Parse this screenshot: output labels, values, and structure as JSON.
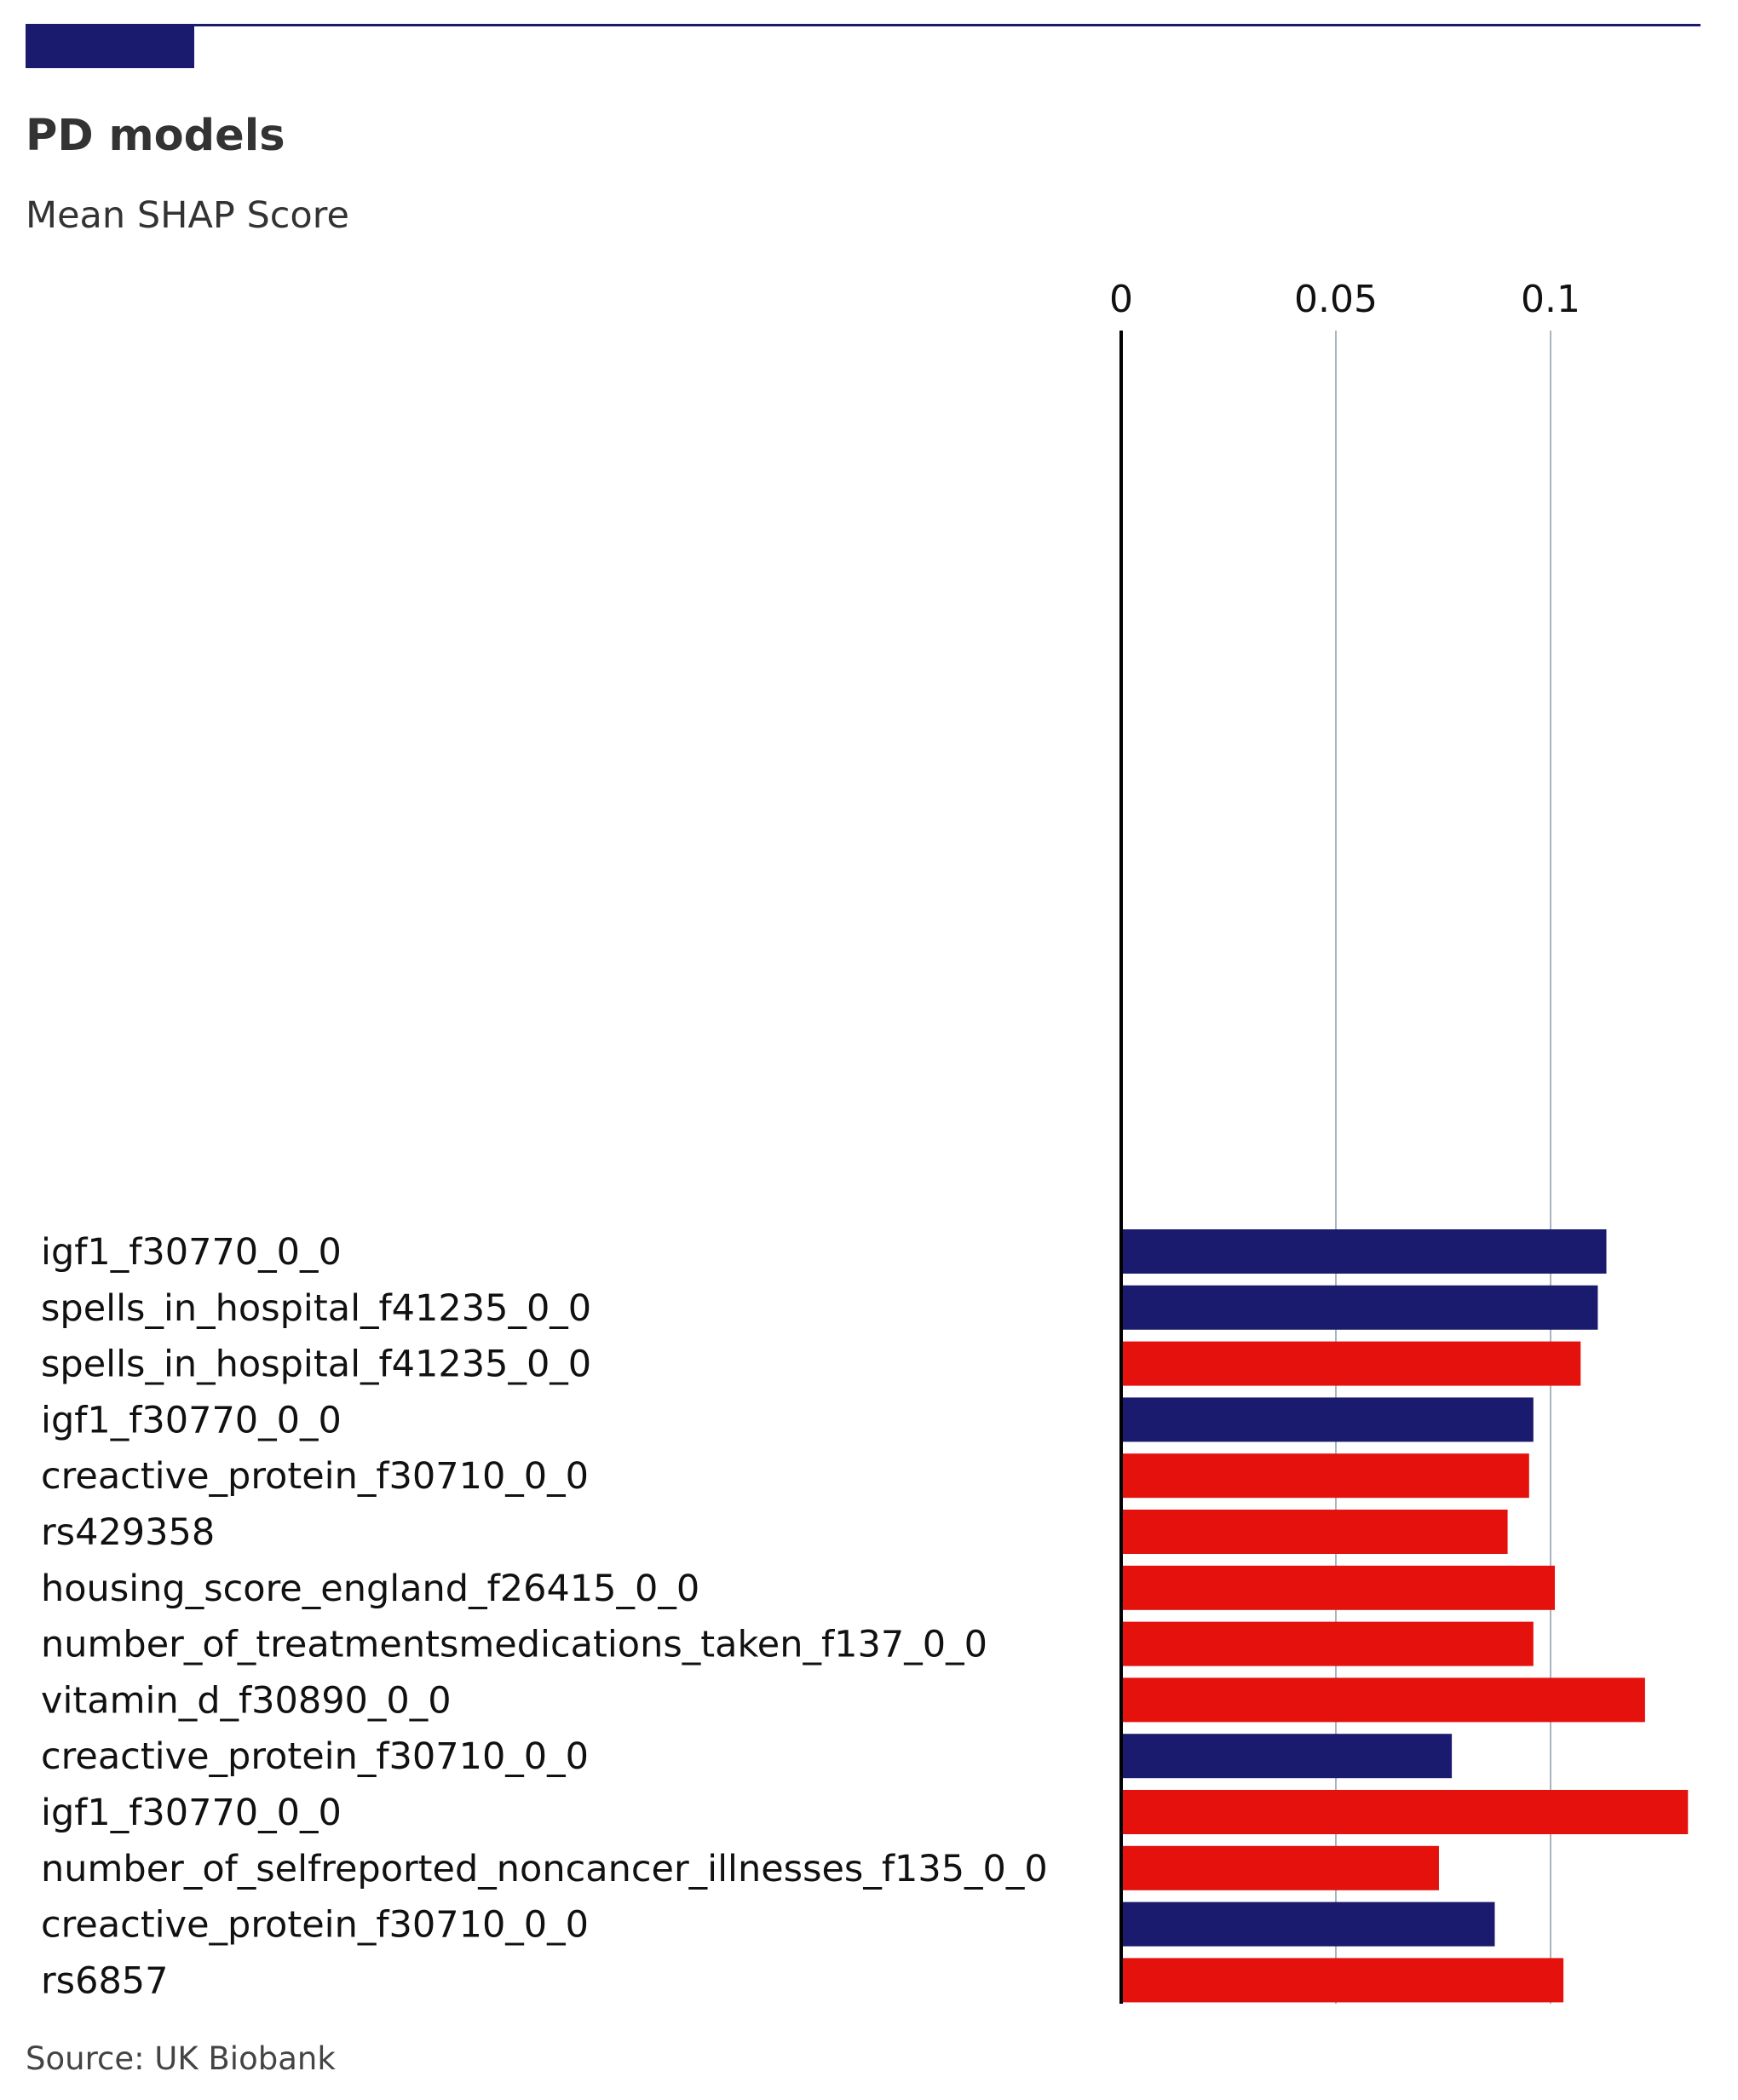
{
  "colors": {
    "navy": "#1a1a6e",
    "red": "#e4110d",
    "grid": "#aab4bf",
    "axis": "#000000"
  },
  "chart_data": {
    "type": "bar",
    "orientation": "horizontal",
    "title": "PD models",
    "subtitle": "Mean SHAP Score",
    "source": "Source: UK Biobank",
    "xlim": [
      0,
      0.13
    ],
    "xticks": [
      0,
      0.05,
      0.1
    ],
    "xtick_labels": [
      "0",
      "0.05",
      "0.1"
    ],
    "grid": true,
    "categories": [
      "igf1_f30770_0_0",
      "spells_in_hospital_f41235_0_0",
      "spells_in_hospital_f41235_0_0",
      "igf1_f30770_0_0",
      "creactive_protein_f30710_0_0",
      "rs429358",
      "housing_score_england_f26415_0_0",
      "number_of_treatmentsmedications_taken_f137_0_0",
      "vitamin_d_f30890_0_0",
      "creactive_protein_f30710_0_0",
      "igf1_f30770_0_0",
      "number_of_selfreported_noncancer_illnesses_f135_0_0",
      "creactive_protein_f30710_0_0",
      "rs6857"
    ],
    "values": [
      0.113,
      0.111,
      0.107,
      0.096,
      0.095,
      0.09,
      0.101,
      0.096,
      0.122,
      0.077,
      0.132,
      0.074,
      0.087,
      0.103
    ],
    "bar_colors": [
      "navy",
      "navy",
      "red",
      "navy",
      "red",
      "red",
      "red",
      "red",
      "red",
      "navy",
      "red",
      "red",
      "navy",
      "red"
    ]
  }
}
